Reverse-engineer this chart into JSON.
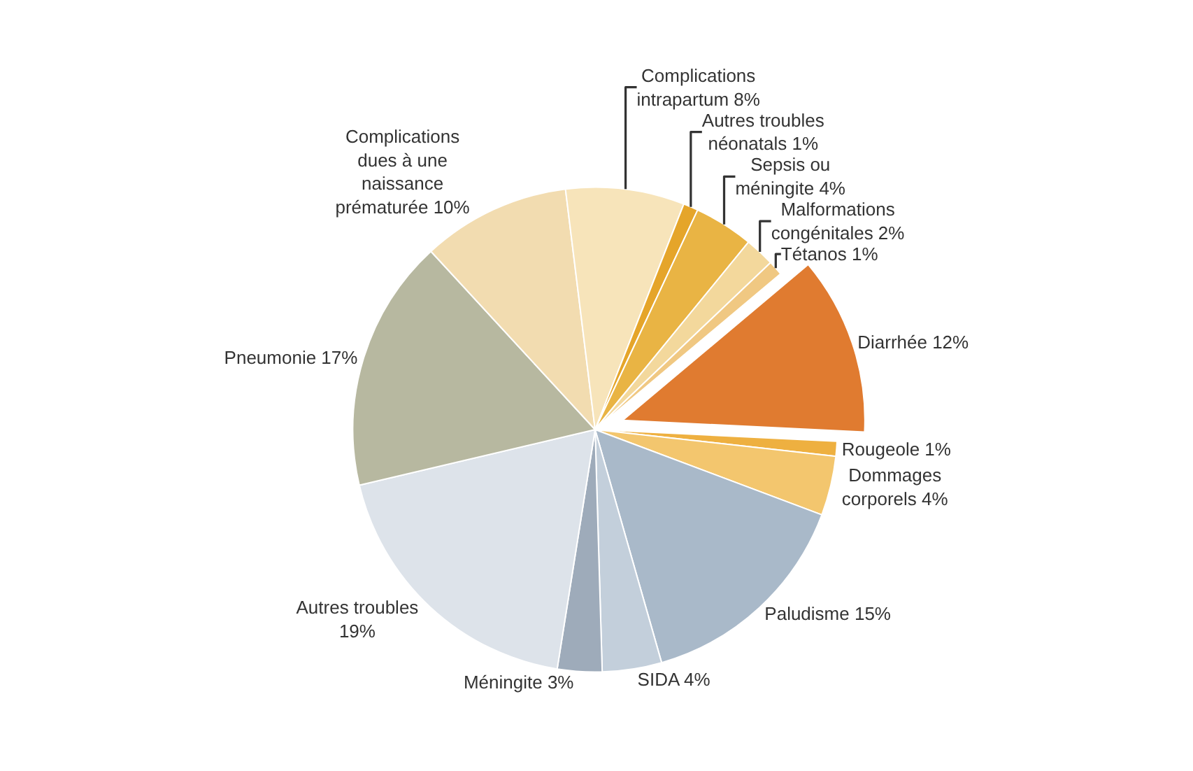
{
  "chart_data": {
    "type": "pie",
    "categories": [
      "Diarrhée",
      "Rougeole",
      "Dommages corporels",
      "Paludisme",
      "SIDA",
      "Méningite",
      "Autres troubles",
      "Pneumonie",
      "Complications dues à une naissance prématurée",
      "Complications intrapartum",
      "Autres troubles néonatals",
      "Sepsis ou méningite",
      "Malformations congénitales",
      "Tétanos"
    ],
    "values": [
      12,
      1,
      4,
      15,
      4,
      3,
      19,
      17,
      10,
      8,
      1,
      4,
      2,
      1
    ],
    "value_labels": [
      "12%",
      "1%",
      "4%",
      "15%",
      "4%",
      "3%",
      "19%",
      "17%",
      "10%",
      "8%",
      "1%",
      "4%",
      "2%",
      "1%"
    ],
    "colors": [
      "#e07b30",
      "#eeb040",
      "#f3c66e",
      "#a9b9c9",
      "#c3cfdb",
      "#9eabba",
      "#dde3ea",
      "#b7b8a0",
      "#f2dcb0",
      "#f7e4ba",
      "#e5a52a",
      "#e9b444",
      "#f3d89c",
      "#f0c882"
    ],
    "legend": false
  }
}
